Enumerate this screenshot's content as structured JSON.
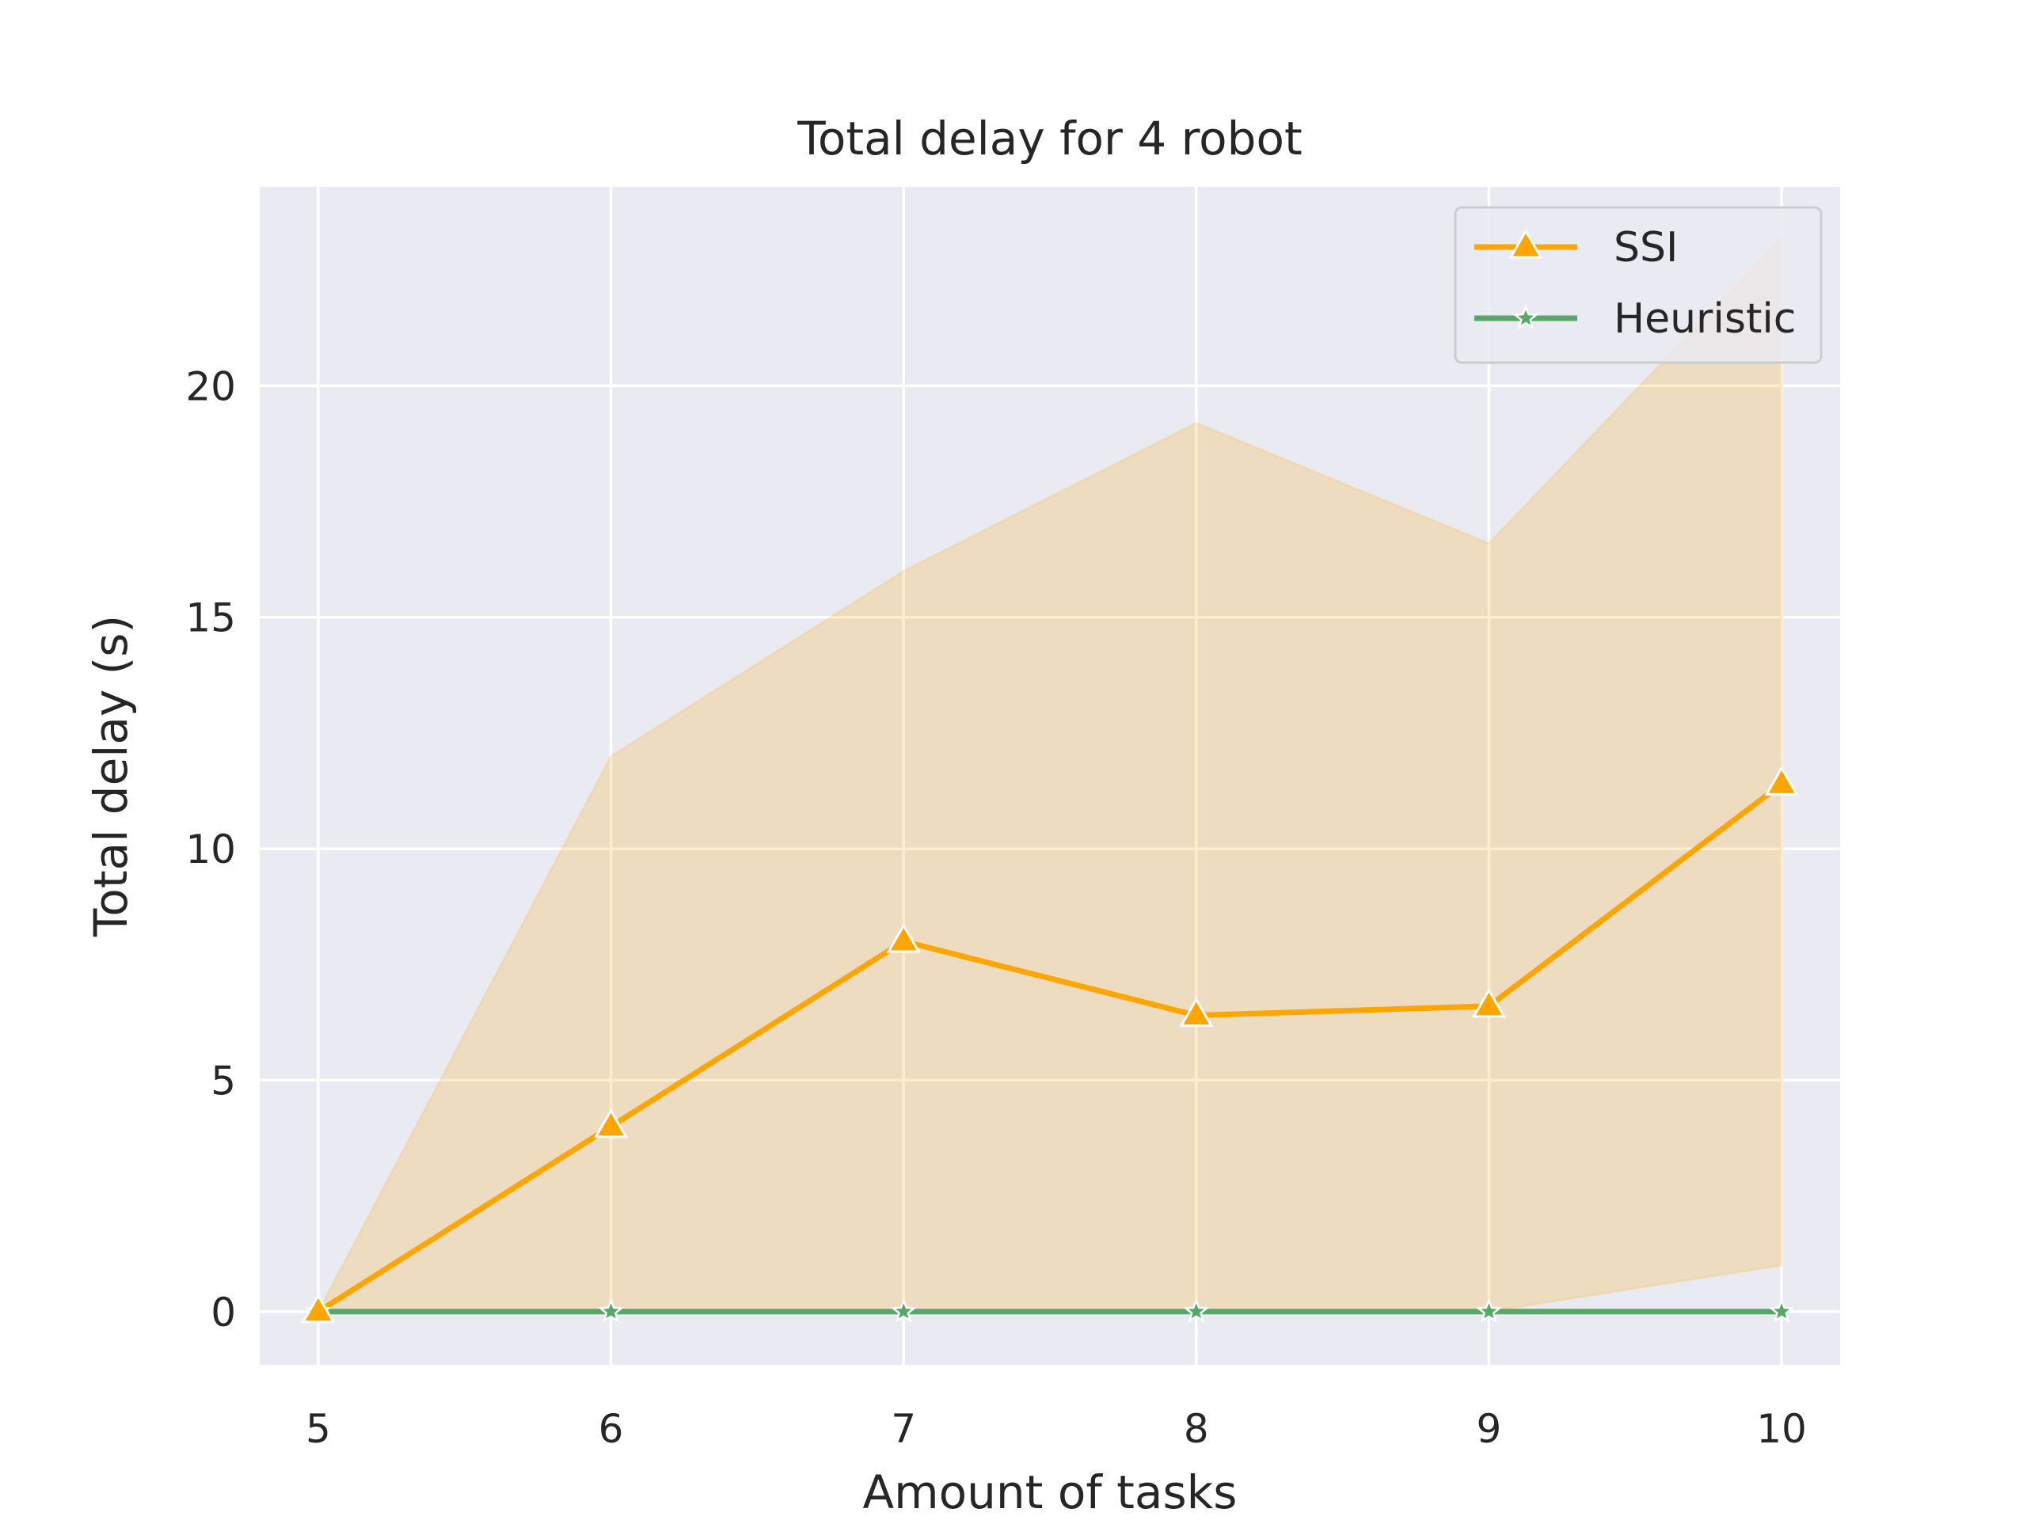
{
  "chart_data": {
    "type": "line",
    "title": "Total delay for 4 robot",
    "xlabel": "Amount of tasks",
    "ylabel": "Total delay (s)",
    "x": [
      5,
      6,
      7,
      8,
      9,
      10
    ],
    "xlim": [
      4.8,
      10.2
    ],
    "ylim": [
      -1.15,
      24.3
    ],
    "yticks": [
      0,
      5,
      10,
      15,
      20
    ],
    "grid": true,
    "legend_position": "top-right",
    "series": [
      {
        "name": "SSI",
        "color": "#FFA500",
        "marker": "triangle",
        "values": [
          0,
          4,
          8,
          6.4,
          6.6,
          11.4
        ],
        "band_upper": [
          0,
          12,
          16,
          19.2,
          16.6,
          23.2
        ],
        "band_lower": [
          0,
          0,
          0,
          0,
          0,
          1
        ]
      },
      {
        "name": "Heuristic",
        "color": "#55A868",
        "marker": "star",
        "values": [
          0,
          0,
          0,
          0,
          0,
          0
        ]
      }
    ]
  }
}
